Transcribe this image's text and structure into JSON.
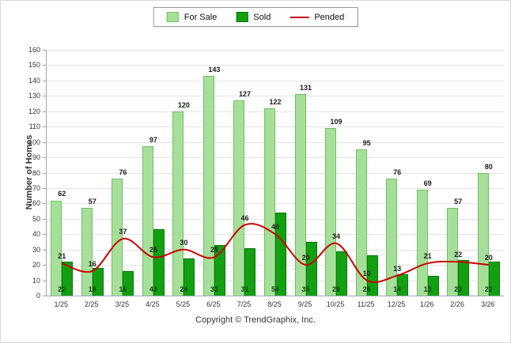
{
  "legend": {
    "for_sale": "For Sale",
    "sold": "Sold",
    "pended": "Pended"
  },
  "ylabel": "Number of Homes",
  "footer": "Copyright © TrendGraphix, Inc.",
  "colors": {
    "for_sale": "#a6df9a",
    "for_sale_border": "#6fbf62",
    "sold": "#12a012",
    "sold_border": "#0a7a0a",
    "pended": "#cc0000"
  },
  "chart_data": {
    "type": "bar",
    "categories": [
      "1/25",
      "2/25",
      "3/25",
      "4/25",
      "5/25",
      "6/25",
      "7/25",
      "8/25",
      "9/25",
      "10/25",
      "11/25",
      "12/25",
      "1/26",
      "2/26",
      "3/26"
    ],
    "series": [
      {
        "name": "For Sale",
        "type": "bar",
        "values": [
          62,
          57,
          76,
          97,
          120,
          143,
          127,
          122,
          131,
          109,
          95,
          76,
          69,
          57,
          80
        ]
      },
      {
        "name": "Sold",
        "type": "bar",
        "values": [
          22,
          18,
          16,
          43,
          24,
          33,
          31,
          54,
          35,
          29,
          26,
          14,
          13,
          23,
          22
        ]
      },
      {
        "name": "Pended",
        "type": "line",
        "values": [
          21,
          16,
          37,
          25,
          30,
          25,
          46,
          40,
          20,
          34,
          10,
          13,
          21,
          22,
          20
        ]
      }
    ],
    "title": "",
    "xlabel": "",
    "ylabel": "Number of Homes",
    "ylim": [
      0,
      160
    ],
    "ytick_step": 10,
    "grid": true,
    "legend_position": "top-center"
  }
}
